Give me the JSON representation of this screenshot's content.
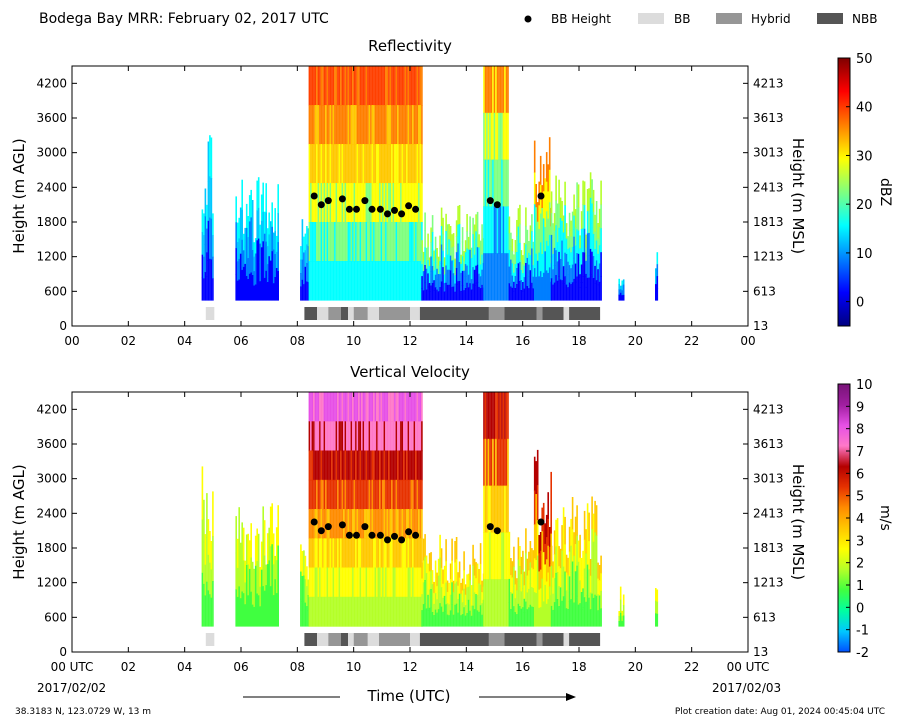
{
  "figure": {
    "title": "Bodega Bay MRR:  February 02, 2017 UTC",
    "xlabel": "Time (UTC)",
    "date_start": "2017/02/02",
    "date_end": "2017/02/03",
    "location": "38.3183 N, 123.0729 W, 13 m",
    "creation": "Plot creation date: Aug 01, 2024 00:45:04 UTC"
  },
  "legend": [
    {
      "label": "BB Height",
      "kind": "marker",
      "color": "#000000"
    },
    {
      "label": "BB",
      "kind": "patch",
      "color": "#dcdcdc"
    },
    {
      "label": "Hybrid",
      "kind": "patch",
      "color": "#969696"
    },
    {
      "label": "NBB",
      "kind": "patch",
      "color": "#555555"
    }
  ],
  "chart_data": [
    {
      "type": "heatmap",
      "title": "Reflectivity",
      "ylabel": "Height (m AGL)",
      "ylabel_right": "Height (m MSL)",
      "xticks": [
        "00",
        "02",
        "04",
        "06",
        "08",
        "10",
        "12",
        "14",
        "16",
        "18",
        "20",
        "22",
        "00"
      ],
      "yticks": [
        "0",
        "600",
        "1200",
        "1800",
        "2400",
        "3000",
        "3600",
        "4200"
      ],
      "yticks_right": [
        "13",
        "613",
        "1213",
        "1813",
        "2413",
        "3013",
        "3613",
        "4213"
      ],
      "colorbar": {
        "label": "dBZ",
        "ticks": [
          "0",
          "10",
          "20",
          "30",
          "40",
          "50"
        ],
        "range": [
          -5,
          50
        ],
        "colors": [
          "#00007f",
          "#0000ff",
          "#007fff",
          "#00ffff",
          "#7fff7f",
          "#ffff00",
          "#ff7f00",
          "#ff0000",
          "#7f0000"
        ]
      }
    },
    {
      "type": "heatmap",
      "title": "Vertical Velocity",
      "ylabel": "Height (m AGL)",
      "ylabel_right": "Height (m MSL)",
      "xticks": [
        "00 UTC",
        "02",
        "04",
        "06",
        "08",
        "10",
        "12",
        "14",
        "16",
        "18",
        "20",
        "22",
        "00 UTC"
      ],
      "yticks": [
        "0",
        "600",
        "1200",
        "1800",
        "2400",
        "3000",
        "3600",
        "4200"
      ],
      "yticks_right": [
        "13",
        "613",
        "1213",
        "1813",
        "2413",
        "3013",
        "3613",
        "4213"
      ],
      "colorbar": {
        "label": "m/s",
        "ticks": [
          "-2",
          "-1",
          "0",
          "1",
          "2",
          "3",
          "4",
          "5",
          "6",
          "7",
          "8",
          "9",
          "10"
        ],
        "range": [
          -2,
          10
        ],
        "colors": [
          "#0050ff",
          "#00c8ff",
          "#00ffa0",
          "#40ff40",
          "#b4ff28",
          "#ffff00",
          "#ffc800",
          "#ff8c00",
          "#e63200",
          "#b40000",
          "#ff78c8",
          "#e650e6",
          "#a01ea0",
          "#781478"
        ]
      }
    }
  ],
  "bb_points": [
    {
      "t": 8.6,
      "h": 2250
    },
    {
      "t": 8.85,
      "h": 2100
    },
    {
      "t": 9.1,
      "h": 2170
    },
    {
      "t": 9.6,
      "h": 2200
    },
    {
      "t": 9.85,
      "h": 2020
    },
    {
      "t": 10.1,
      "h": 2020
    },
    {
      "t": 10.4,
      "h": 2170
    },
    {
      "t": 10.65,
      "h": 2020
    },
    {
      "t": 10.95,
      "h": 2020
    },
    {
      "t": 11.2,
      "h": 1940
    },
    {
      "t": 11.45,
      "h": 2000
    },
    {
      "t": 11.7,
      "h": 1940
    },
    {
      "t": 11.95,
      "h": 2080
    },
    {
      "t": 12.2,
      "h": 2020
    },
    {
      "t": 14.85,
      "h": 2170
    },
    {
      "t": 15.1,
      "h": 2100
    },
    {
      "t": 16.65,
      "h": 2250
    }
  ],
  "bb_bars": [
    {
      "t0": 4.75,
      "t1": 5.05,
      "type": "BB"
    },
    {
      "t0": 8.25,
      "t1": 8.7,
      "type": "NBB"
    },
    {
      "t0": 8.7,
      "t1": 9.1,
      "type": "BB"
    },
    {
      "t0": 9.1,
      "t1": 9.55,
      "type": "Hybrid"
    },
    {
      "t0": 9.55,
      "t1": 9.8,
      "type": "NBB"
    },
    {
      "t0": 9.8,
      "t1": 10.0,
      "type": "BB"
    },
    {
      "t0": 10.0,
      "t1": 10.5,
      "type": "Hybrid"
    },
    {
      "t0": 10.5,
      "t1": 10.9,
      "type": "BB"
    },
    {
      "t0": 10.9,
      "t1": 12.0,
      "type": "Hybrid"
    },
    {
      "t0": 12.0,
      "t1": 12.35,
      "type": "BB"
    },
    {
      "t0": 12.35,
      "t1": 14.8,
      "type": "NBB"
    },
    {
      "t0": 14.8,
      "t1": 15.35,
      "type": "Hybrid"
    },
    {
      "t0": 15.35,
      "t1": 16.5,
      "type": "NBB"
    },
    {
      "t0": 16.5,
      "t1": 16.7,
      "type": "Hybrid"
    },
    {
      "t0": 16.7,
      "t1": 17.45,
      "type": "NBB"
    },
    {
      "t0": 17.45,
      "t1": 17.65,
      "type": "BB"
    },
    {
      "t0": 17.65,
      "t1": 18.75,
      "type": "NBB"
    }
  ]
}
